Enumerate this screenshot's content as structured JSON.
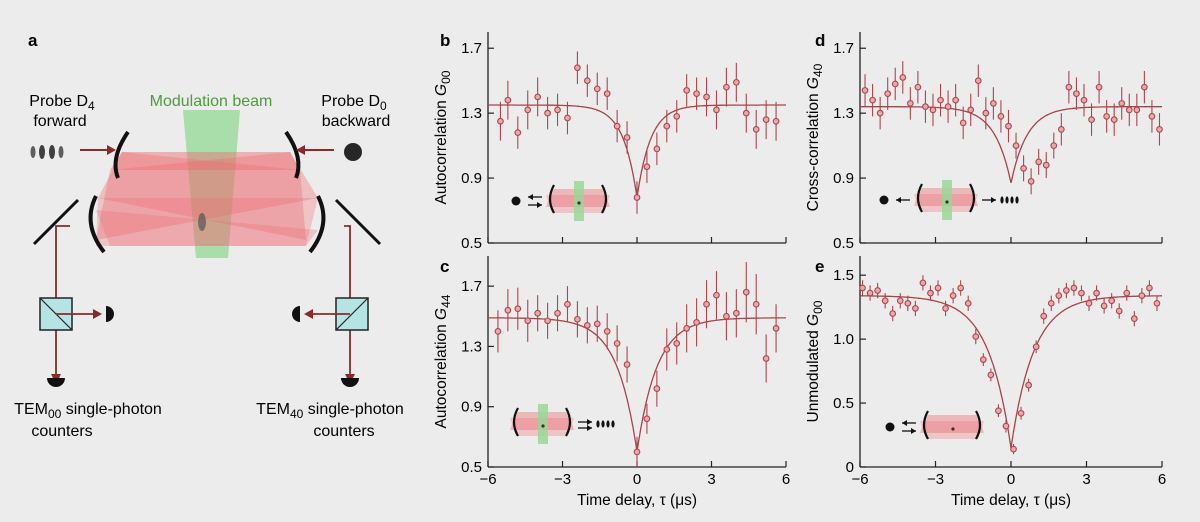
{
  "colors": {
    "data": "#b0444a",
    "data_fill": "#e9a9ac",
    "fit": "#a8434a",
    "axis": "#222222",
    "beam_red": "#ef6b6f",
    "beam_green": "#93d893",
    "mirror": "#111111",
    "optics_line": "#8a2a2a",
    "cube": "#b6e4e4"
  },
  "panel_a": {
    "letter": "a",
    "modulation_beam": "Modulation beam",
    "probe_left": {
      "line1_pre": "Probe D",
      "line1_sub": "4",
      "line2": "forward"
    },
    "probe_right": {
      "line1_pre": "Probe D",
      "line1_sub": "0",
      "line2": "backward"
    },
    "counters_left": {
      "pre": "TEM",
      "sub": "00",
      "post": " single-photon",
      "line2": "counters"
    },
    "counters_right": {
      "pre": "TEM",
      "sub": "40",
      "post": " single-photon",
      "line2": "counters"
    }
  },
  "chart_data": [
    {
      "type": "scatter",
      "panel": "b",
      "ylabel": "Autocorrelation G",
      "ylabel_sub": "00",
      "xlabel": "",
      "xlim": [
        -6,
        6
      ],
      "ylim": [
        0.5,
        1.8
      ],
      "yticks": [
        0.5,
        0.9,
        1.3,
        1.7
      ],
      "xticks": [
        -6,
        -3,
        0,
        3,
        6
      ],
      "show_xtick_labels": false,
      "fit": {
        "baseline": 1.35,
        "dip_min": 0.78,
        "width": 0.55
      },
      "x": [
        -5.5,
        -5.2,
        -4.8,
        -4.4,
        -4.0,
        -3.6,
        -3.2,
        -2.8,
        -2.4,
        -2.0,
        -1.6,
        -1.2,
        -0.8,
        -0.4,
        0.0,
        0.4,
        0.8,
        1.2,
        1.6,
        2.0,
        2.4,
        2.8,
        3.2,
        3.6,
        4.0,
        4.4,
        4.8,
        5.2,
        5.6
      ],
      "y": [
        1.25,
        1.38,
        1.18,
        1.32,
        1.4,
        1.3,
        1.32,
        1.27,
        1.58,
        1.5,
        1.45,
        1.42,
        1.22,
        1.15,
        0.78,
        0.97,
        1.08,
        1.22,
        1.28,
        1.44,
        1.42,
        1.4,
        1.32,
        1.46,
        1.49,
        1.3,
        1.2,
        1.26,
        1.25
      ],
      "yerr": [
        0.12,
        0.12,
        0.1,
        0.12,
        0.12,
        0.1,
        0.1,
        0.1,
        0.1,
        0.1,
        0.1,
        0.1,
        0.1,
        0.1,
        0.1,
        0.1,
        0.1,
        0.1,
        0.1,
        0.1,
        0.1,
        0.12,
        0.12,
        0.12,
        0.12,
        0.12,
        0.12,
        0.12,
        0.12
      ]
    },
    {
      "type": "scatter",
      "panel": "c",
      "ylabel": "Autocorrelation G",
      "ylabel_sub": "44",
      "xlabel": "Time delay, τ (μs)",
      "xlim": [
        -6,
        6
      ],
      "ylim": [
        0.5,
        1.9
      ],
      "yticks": [
        0.5,
        0.9,
        1.3,
        1.7
      ],
      "xticks": [
        -6,
        -3,
        0,
        3,
        6
      ],
      "show_xtick_labels": true,
      "fit": {
        "baseline": 1.49,
        "dip_min": 0.6,
        "width": 0.8
      },
      "x": [
        -5.6,
        -5.2,
        -4.8,
        -4.4,
        -4.0,
        -3.6,
        -3.2,
        -2.8,
        -2.4,
        -2.0,
        -1.6,
        -1.2,
        -0.8,
        -0.4,
        0.0,
        0.4,
        0.8,
        1.2,
        1.6,
        2.0,
        2.4,
        2.8,
        3.2,
        3.6,
        4.0,
        4.4,
        4.8,
        5.2,
        5.6
      ],
      "y": [
        1.4,
        1.54,
        1.55,
        1.47,
        1.52,
        1.47,
        1.52,
        1.58,
        1.48,
        1.44,
        1.45,
        1.4,
        1.32,
        1.18,
        0.6,
        0.82,
        1.02,
        1.28,
        1.32,
        1.42,
        1.46,
        1.58,
        1.64,
        1.5,
        1.52,
        1.66,
        1.58,
        1.22,
        1.42
      ],
      "yerr": [
        0.14,
        0.14,
        0.14,
        0.14,
        0.12,
        0.12,
        0.12,
        0.12,
        0.12,
        0.12,
        0.12,
        0.12,
        0.12,
        0.12,
        0.1,
        0.1,
        0.12,
        0.14,
        0.14,
        0.16,
        0.16,
        0.16,
        0.16,
        0.16,
        0.16,
        0.2,
        0.2,
        0.16,
        0.16
      ]
    },
    {
      "type": "scatter",
      "panel": "d",
      "ylabel": "Cross-correlation G",
      "ylabel_sub": "40",
      "xlabel": "",
      "xlim": [
        -6,
        6
      ],
      "ylim": [
        0.5,
        1.8
      ],
      "yticks": [
        0.5,
        0.9,
        1.3,
        1.7
      ],
      "xticks": [
        -6,
        -3,
        0,
        3,
        6
      ],
      "show_xtick_labels": false,
      "fit": {
        "baseline": 1.34,
        "dip_min": 0.87,
        "width": 0.65
      },
      "x": [
        -5.8,
        -5.5,
        -5.2,
        -4.9,
        -4.6,
        -4.3,
        -4.0,
        -3.7,
        -3.4,
        -3.1,
        -2.8,
        -2.5,
        -2.2,
        -1.9,
        -1.6,
        -1.3,
        -1.0,
        -0.7,
        -0.4,
        -0.1,
        0.2,
        0.5,
        0.8,
        1.1,
        1.4,
        1.7,
        2.0,
        2.3,
        2.6,
        2.9,
        3.2,
        3.5,
        3.8,
        4.1,
        4.4,
        4.7,
        5.0,
        5.3,
        5.6,
        5.9
      ],
      "y": [
        1.44,
        1.38,
        1.3,
        1.42,
        1.48,
        1.52,
        1.36,
        1.46,
        1.34,
        1.32,
        1.38,
        1.34,
        1.38,
        1.24,
        1.32,
        1.5,
        1.3,
        1.36,
        1.28,
        1.22,
        1.1,
        0.96,
        0.88,
        1.0,
        0.98,
        1.1,
        1.2,
        1.46,
        1.42,
        1.38,
        1.26,
        1.46,
        1.28,
        1.26,
        1.36,
        1.32,
        1.32,
        1.46,
        1.28,
        1.2
      ],
      "yerr": [
        0.1,
        0.1,
        0.1,
        0.1,
        0.1,
        0.1,
        0.1,
        0.1,
        0.1,
        0.1,
        0.1,
        0.1,
        0.1,
        0.1,
        0.1,
        0.1,
        0.1,
        0.1,
        0.1,
        0.1,
        0.08,
        0.08,
        0.08,
        0.08,
        0.08,
        0.08,
        0.1,
        0.1,
        0.1,
        0.1,
        0.1,
        0.1,
        0.1,
        0.1,
        0.1,
        0.1,
        0.1,
        0.1,
        0.1,
        0.1
      ]
    },
    {
      "type": "scatter",
      "panel": "e",
      "ylabel": "Unmodulated G",
      "ylabel_sub": "00",
      "xlabel": "Time delay, τ (μs)",
      "xlim": [
        -6,
        6
      ],
      "ylim": [
        0,
        1.65
      ],
      "yticks": [
        0,
        0.5,
        1.0,
        1.5
      ],
      "ytick_labels": [
        "0",
        "0.5",
        "1.0",
        "1.5"
      ],
      "xticks": [
        -6,
        -3,
        0,
        3,
        6
      ],
      "show_xtick_labels": true,
      "fit": {
        "baseline": 1.34,
        "dip_min": 0.15,
        "width": 0.9
      },
      "x": [
        -5.9,
        -5.6,
        -5.3,
        -5.0,
        -4.7,
        -4.4,
        -4.1,
        -3.8,
        -3.5,
        -3.2,
        -2.9,
        -2.6,
        -2.3,
        -2.0,
        -1.7,
        -1.4,
        -1.1,
        -0.8,
        -0.5,
        -0.2,
        0.1,
        0.4,
        0.7,
        1.0,
        1.3,
        1.6,
        1.9,
        2.2,
        2.5,
        2.8,
        3.1,
        3.4,
        3.7,
        4.0,
        4.3,
        4.6,
        4.9,
        5.2,
        5.5,
        5.8
      ],
      "y": [
        1.4,
        1.36,
        1.38,
        1.3,
        1.2,
        1.3,
        1.28,
        1.24,
        1.44,
        1.36,
        1.4,
        1.24,
        1.34,
        1.4,
        1.28,
        1.02,
        0.84,
        0.72,
        0.44,
        0.32,
        0.14,
        0.42,
        0.64,
        0.94,
        1.18,
        1.28,
        1.34,
        1.38,
        1.4,
        1.36,
        1.28,
        1.36,
        1.26,
        1.3,
        1.22,
        1.36,
        1.16,
        1.34,
        1.4,
        1.28
      ],
      "yerr": [
        0.06,
        0.06,
        0.06,
        0.06,
        0.06,
        0.06,
        0.06,
        0.06,
        0.06,
        0.06,
        0.06,
        0.06,
        0.06,
        0.06,
        0.06,
        0.06,
        0.05,
        0.05,
        0.05,
        0.05,
        0.04,
        0.05,
        0.05,
        0.05,
        0.06,
        0.06,
        0.06,
        0.06,
        0.06,
        0.06,
        0.06,
        0.06,
        0.06,
        0.06,
        0.06,
        0.06,
        0.06,
        0.06,
        0.06,
        0.06
      ]
    }
  ]
}
